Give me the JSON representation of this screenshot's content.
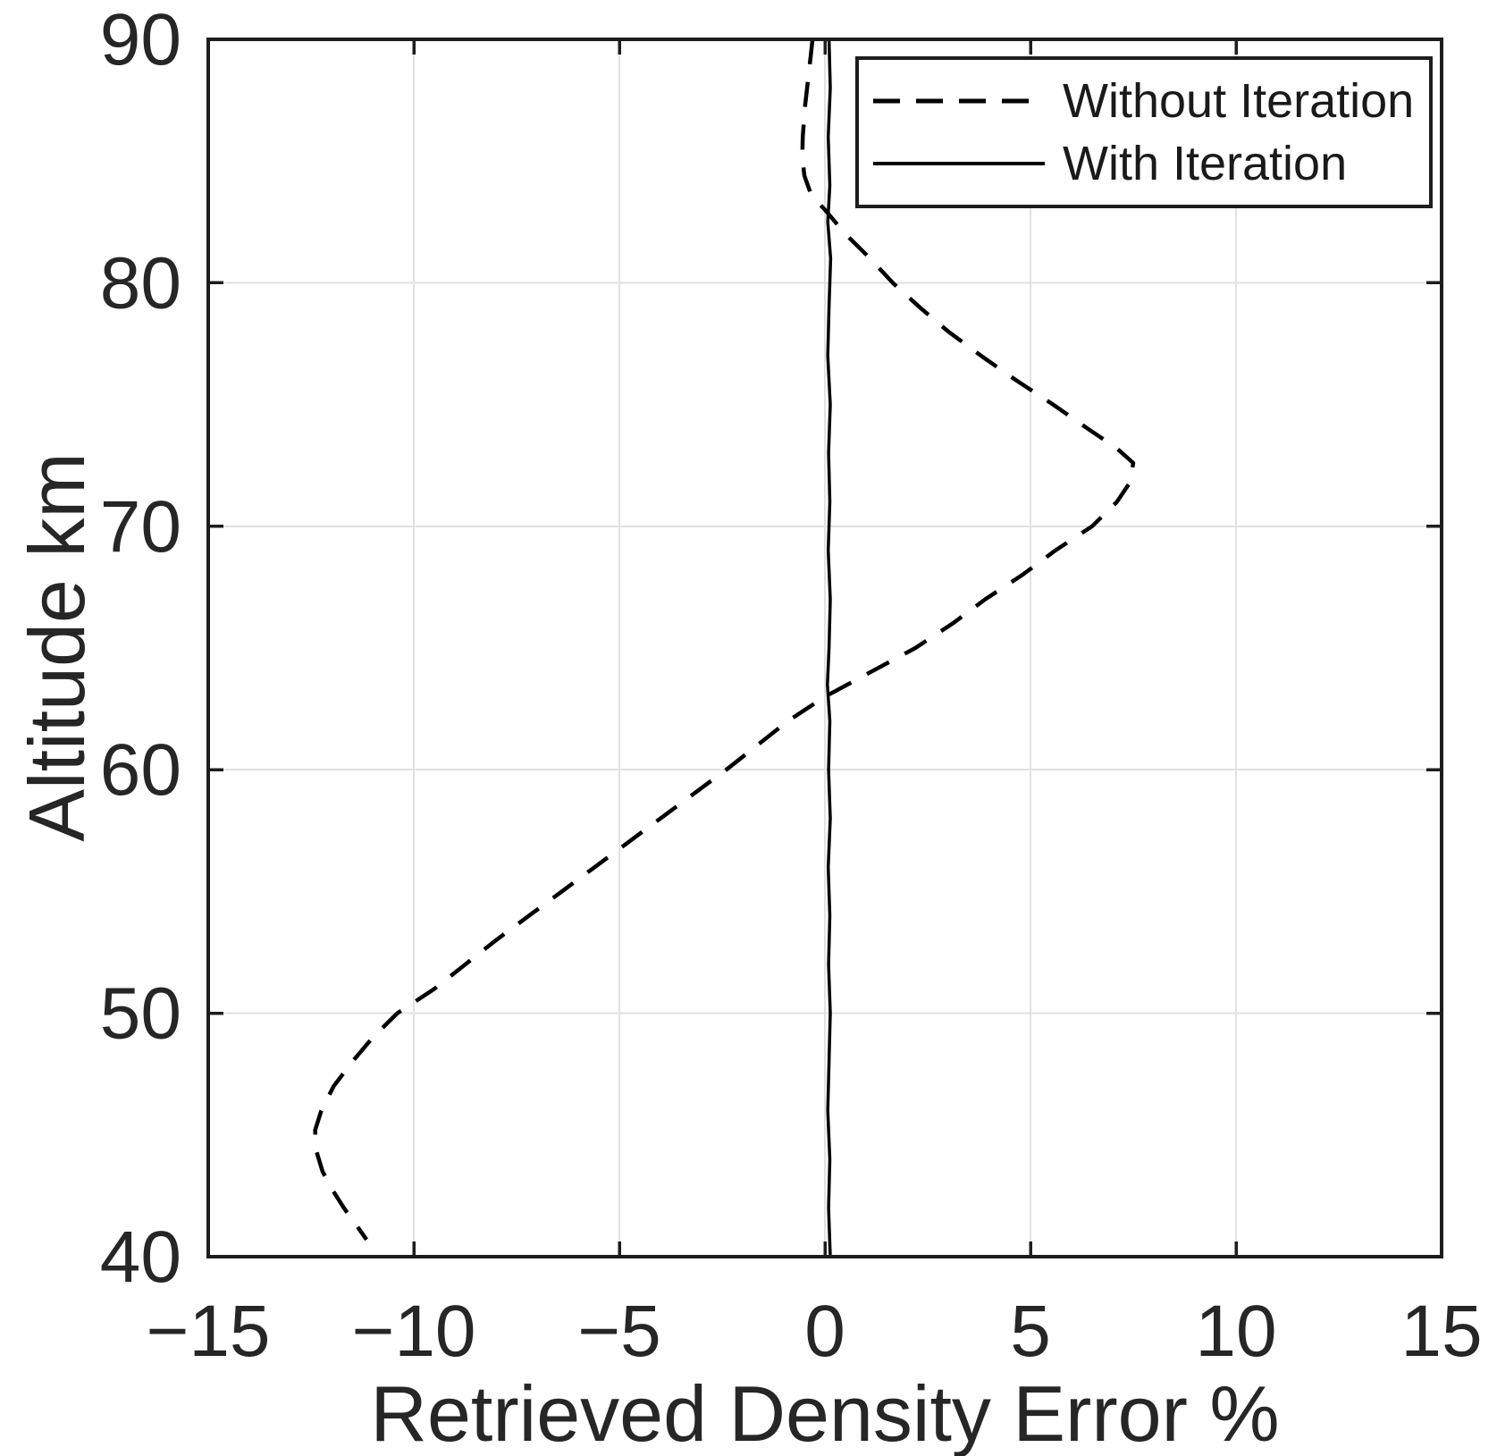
{
  "figure": {
    "background": "#ffffff",
    "axis_color": "#1d1d1d",
    "text_color": "#262626",
    "grid_color": "#e2e2e2",
    "line_color": "#000000"
  },
  "chart_data": {
    "type": "line",
    "title": "",
    "xlabel": "Retrieved Density Error %",
    "ylabel": "Altitude km",
    "xlim": [
      -15,
      15
    ],
    "ylim": [
      40,
      90
    ],
    "grid": true,
    "legend_position": "top-right",
    "x_ticks": [
      -15,
      -10,
      -5,
      0,
      5,
      10,
      15
    ],
    "x_tick_labels": [
      "−15",
      "−10",
      "−5",
      "0",
      "5",
      "10",
      "15"
    ],
    "x_grid_values": [
      -10,
      -5,
      0,
      5,
      10
    ],
    "y_ticks": [
      40,
      50,
      60,
      70,
      80,
      90
    ],
    "y_tick_labels": [
      "40",
      "50",
      "60",
      "70",
      "80",
      "90"
    ],
    "y_grid_values": [
      50,
      60,
      70,
      80
    ],
    "series": [
      {
        "name": "Without Iteration",
        "line_style": "dashed",
        "color": "#000000",
        "points": [
          [
            -0.3,
            90
          ],
          [
            -0.4,
            88.5
          ],
          [
            -0.48,
            87.3
          ],
          [
            -0.54,
            86
          ],
          [
            -0.55,
            85.2
          ],
          [
            -0.5,
            84.4
          ],
          [
            -0.33,
            83.6
          ],
          [
            0.0,
            83
          ],
          [
            0.5,
            82
          ],
          [
            1.1,
            81
          ],
          [
            1.65,
            80
          ],
          [
            2.3,
            79
          ],
          [
            3.0,
            78
          ],
          [
            3.8,
            77
          ],
          [
            4.65,
            76
          ],
          [
            5.55,
            75
          ],
          [
            6.4,
            74
          ],
          [
            7.1,
            73.2
          ],
          [
            7.5,
            72.6
          ],
          [
            7.42,
            71.8
          ],
          [
            7.1,
            71
          ],
          [
            6.5,
            70
          ],
          [
            5.6,
            69
          ],
          [
            4.8,
            68
          ],
          [
            3.9,
            67
          ],
          [
            3.1,
            66
          ],
          [
            2.2,
            65
          ],
          [
            1.1,
            64
          ],
          [
            0.0,
            63
          ],
          [
            -0.9,
            62
          ],
          [
            -1.65,
            61
          ],
          [
            -2.4,
            60
          ],
          [
            -3.2,
            59
          ],
          [
            -4.0,
            58
          ],
          [
            -4.8,
            57
          ],
          [
            -5.6,
            56
          ],
          [
            -6.4,
            55
          ],
          [
            -7.2,
            54
          ],
          [
            -8.0,
            53
          ],
          [
            -8.75,
            52
          ],
          [
            -9.5,
            51
          ],
          [
            -10.4,
            50
          ],
          [
            -11.0,
            49
          ],
          [
            -11.5,
            48
          ],
          [
            -11.95,
            47
          ],
          [
            -12.25,
            46
          ],
          [
            -12.4,
            45.2
          ],
          [
            -12.38,
            44.4
          ],
          [
            -12.22,
            43.5
          ],
          [
            -12.0,
            42.8
          ],
          [
            -11.7,
            42
          ],
          [
            -11.4,
            41.3
          ],
          [
            -11.15,
            40.7
          ]
        ]
      },
      {
        "name": "With Iteration",
        "line_style": "solid",
        "color": "#000000",
        "points": [
          [
            0.1,
            90
          ],
          [
            0.13,
            88
          ],
          [
            0.08,
            86
          ],
          [
            0.12,
            84
          ],
          [
            0.07,
            82.5
          ],
          [
            0.14,
            81
          ],
          [
            0.1,
            79
          ],
          [
            0.07,
            77
          ],
          [
            0.13,
            75
          ],
          [
            0.09,
            73
          ],
          [
            0.12,
            71
          ],
          [
            0.08,
            69
          ],
          [
            0.13,
            67
          ],
          [
            0.1,
            65
          ],
          [
            0.06,
            63.5
          ],
          [
            0.12,
            62
          ],
          [
            0.09,
            60
          ],
          [
            0.13,
            58
          ],
          [
            0.08,
            56
          ],
          [
            0.12,
            54
          ],
          [
            0.09,
            52
          ],
          [
            0.13,
            50
          ],
          [
            0.1,
            48
          ],
          [
            0.07,
            46
          ],
          [
            0.12,
            44
          ],
          [
            0.09,
            42
          ],
          [
            0.13,
            40
          ]
        ]
      }
    ]
  }
}
